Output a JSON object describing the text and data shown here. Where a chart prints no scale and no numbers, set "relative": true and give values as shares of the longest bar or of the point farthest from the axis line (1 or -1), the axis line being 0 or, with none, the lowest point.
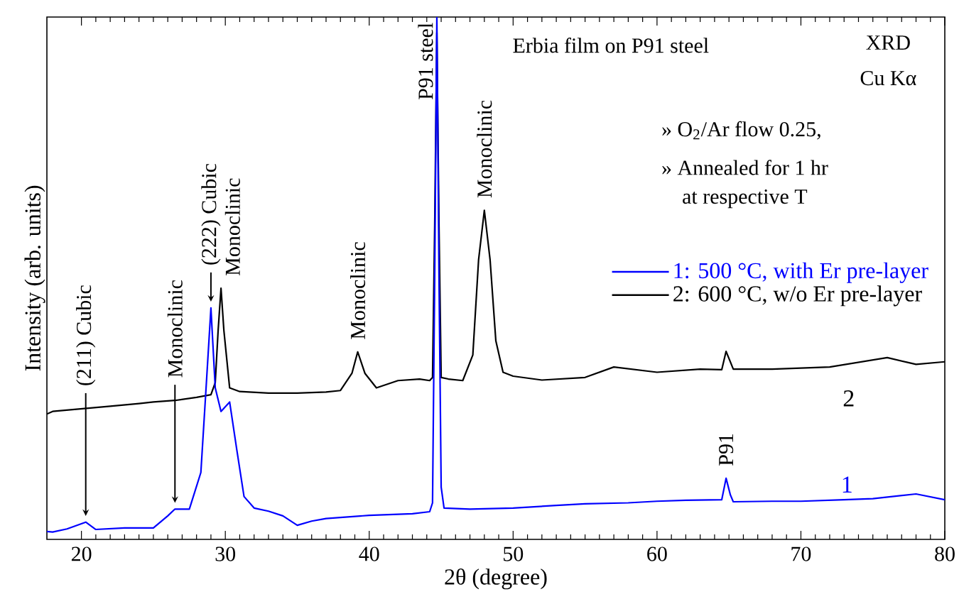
{
  "chart_data": {
    "type": "line",
    "relative": true,
    "xlabel": "2θ (degree)",
    "ylabel": "Intensity (arb. units)",
    "xlim": [
      17.6,
      80
    ],
    "xticks": [
      20,
      30,
      40,
      50,
      60,
      70,
      80
    ],
    "legend": "right",
    "marker": "none",
    "line_style": "solid",
    "grid": false,
    "series": [
      {
        "name": "1: 500 °C, with Er pre-layer",
        "color": "#0000ff",
        "x": [
          17.6,
          18,
          19,
          20.3,
          21,
          23,
          25,
          26,
          26.5,
          27.5,
          28.3,
          28.7,
          29.0,
          29.3,
          29.7,
          30.3,
          30.8,
          31.3,
          32,
          33,
          34,
          35,
          36,
          37,
          38,
          40,
          42,
          43,
          44.2,
          44.4,
          44.55,
          44.7,
          44.85,
          45,
          45.2,
          47,
          50,
          53,
          55,
          58,
          60,
          62,
          64.5,
          64.8,
          65.1,
          65.3,
          68,
          70,
          73,
          75,
          78,
          80
        ],
        "values": [
          0.015,
          0.014,
          0.02,
          0.033,
          0.019,
          0.022,
          0.022,
          0.045,
          0.058,
          0.058,
          0.128,
          0.307,
          0.443,
          0.29,
          0.245,
          0.263,
          0.171,
          0.082,
          0.06,
          0.054,
          0.045,
          0.027,
          0.035,
          0.04,
          0.042,
          0.046,
          0.048,
          0.049,
          0.053,
          0.07,
          0.5,
          1.0,
          0.5,
          0.1,
          0.06,
          0.058,
          0.06,
          0.065,
          0.068,
          0.07,
          0.073,
          0.075,
          0.076,
          0.117,
          0.085,
          0.072,
          0.073,
          0.073,
          0.076,
          0.078,
          0.087,
          0.076
        ]
      },
      {
        "name": "2: 600 °C, w/o Er pre-layer",
        "color": "#000000",
        "x": [
          17.6,
          18,
          20,
          22,
          24,
          25,
          26.5,
          28,
          29,
          29.3,
          29.5,
          29.7,
          29.9,
          30.3,
          31,
          33,
          35,
          37,
          38,
          38.8,
          39.2,
          39.7,
          40.5,
          42,
          43.5,
          44.2,
          44.4,
          44.55,
          44.7,
          44.85,
          45,
          45.5,
          46.5,
          47.2,
          47.6,
          48.0,
          48.4,
          48.8,
          49.3,
          50,
          52,
          55,
          57,
          60,
          63,
          64.5,
          64.8,
          65.3,
          68,
          72,
          76,
          78,
          80
        ],
        "values": [
          0.24,
          0.245,
          0.25,
          0.255,
          0.26,
          0.263,
          0.266,
          0.272,
          0.277,
          0.3,
          0.4,
          0.481,
          0.4,
          0.29,
          0.283,
          0.28,
          0.28,
          0.282,
          0.285,
          0.318,
          0.359,
          0.318,
          0.29,
          0.304,
          0.307,
          0.304,
          0.31,
          0.6,
          0.97,
          0.6,
          0.31,
          0.307,
          0.304,
          0.353,
          0.535,
          0.63,
          0.535,
          0.38,
          0.32,
          0.3125,
          0.305,
          0.31,
          0.33,
          0.32,
          0.326,
          0.325,
          0.36,
          0.326,
          0.326,
          0.33,
          0.348,
          0.335,
          0.34
        ]
      }
    ],
    "annotations": [
      "Erbia film on P91 steel",
      "XRD",
      "Cu Kα",
      "» O$_{2}$/Ar flow 0.25,",
      "» Annealed for 1 hr",
      "at respective T",
      {
        "text": "(211) Cubic",
        "x": 20.3,
        "y": 0.033
      },
      {
        "text": "Monoclinic",
        "x": 26.5,
        "y": 0.058
      },
      {
        "text": "(222) Cubic",
        "x": 29.0,
        "y": 0.443
      },
      {
        "text": "Monoclinic",
        "x": 29.7,
        "y": 0.481
      },
      {
        "text": "Monoclinic",
        "x": 39.2,
        "y": 0.359
      },
      {
        "text": "P91 steel",
        "x": 44.7,
        "y": 1.0
      },
      {
        "text": "Monoclinic",
        "x": 48.0,
        "y": 0.63
      },
      {
        "text": "P91",
        "x": 64.8,
        "y": 0.117
      },
      "1",
      "2"
    ]
  }
}
